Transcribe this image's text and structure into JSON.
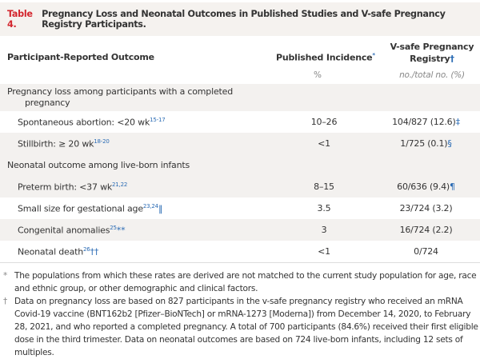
{
  "title": {
    "number": "Table 4.",
    "text": "Pregnancy Loss and Neonatal Outcomes in Published Studies and V-safe Pregnancy Registry Participants."
  },
  "header": {
    "col1": "Participant-Reported Outcome",
    "col2": "Published Incidence",
    "col2_mark": "*",
    "col3_line1": "V-safe Pregnancy",
    "col3_line2": "Registry",
    "col3_mark": "†",
    "col2_unit": "%",
    "col3_unit": "no./total no. (%)"
  },
  "groups": [
    {
      "label_line1": "Pregnancy loss among participants with a completed",
      "label_line2": "pregnancy"
    },
    {
      "label": "Neonatal outcome among live-born infants"
    }
  ],
  "rows": [
    {
      "label": "Spontaneous abortion: <20 wk",
      "refs": "15-17",
      "mark": "",
      "published": "10–26",
      "registry": "104/827 (12.6)",
      "registry_mark": "‡"
    },
    {
      "label": "Stillbirth: ≥ 20 wk",
      "refs": "18-20",
      "mark": "",
      "published": "<1",
      "registry": "1/725 (0.1)",
      "registry_mark": "§"
    },
    {
      "label": "Preterm birth: <37 wk",
      "refs": "21,22",
      "mark": "",
      "published": "8–15",
      "registry": "60/636 (9.4)",
      "registry_mark": "¶"
    },
    {
      "label": "Small size for gestational age",
      "refs": "23,24",
      "mark": "‖",
      "published": "3.5",
      "registry": "23/724 (3.2)",
      "registry_mark": ""
    },
    {
      "label": "Congenital anomalies",
      "refs": "25",
      "mark": "**",
      "published": "3",
      "registry": "16/724 (2.2)",
      "registry_mark": ""
    },
    {
      "label": "Neonatal death",
      "refs": "26",
      "mark": "††",
      "published": "<1",
      "registry": "0/724",
      "registry_mark": ""
    }
  ],
  "footnotes": [
    {
      "mark": "*",
      "text": "The populations from which these rates are derived are not matched to the current study population for age, race and ethnic group, or other demographic and clinical factors."
    },
    {
      "mark": "†",
      "text": "Data on pregnancy loss are based on 827 participants in the v-safe pregnancy registry who received an mRNA Covid-19 vaccine (BNT162b2 [Pfizer–BioNTech] or mRNA-1273 [Moderna]) from December 14, 2020, to February 28, 2021, and who reported a completed pregnancy. A total of 700 participants (84.6%) received their first eligible dose in the third trimester. Data on neonatal outcomes are based on 724 live-born infants, including 12 sets of multiples."
    }
  ],
  "colors": {
    "accent": "#d3262e",
    "link": "#2a6bb4",
    "band": "#f3f1ef"
  }
}
